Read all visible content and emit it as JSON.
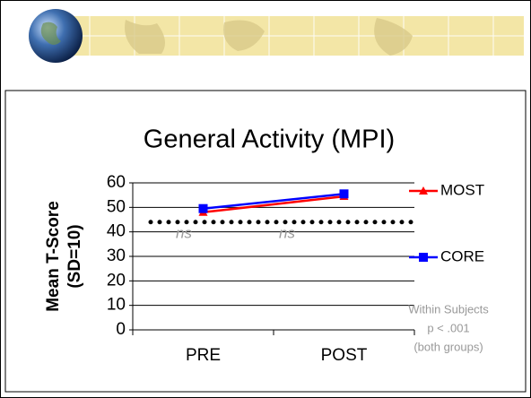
{
  "chart_data": {
    "type": "line",
    "title": "General Activity (MPI)",
    "y_label_lines": [
      "Mean T-Score",
      "(SD=10)"
    ],
    "categories": [
      "PRE",
      "POST"
    ],
    "series": [
      {
        "name": "MOST",
        "color": "#ff0000",
        "marker": "triangle",
        "values": [
          48,
          54.5
        ]
      },
      {
        "name": "CORE",
        "color": "#0000ff",
        "marker": "square",
        "values": [
          49.5,
          55.5
        ]
      }
    ],
    "ylim": [
      0,
      60
    ],
    "yticks": [
      0,
      10,
      20,
      30,
      40,
      50,
      60
    ],
    "grid": true,
    "reference_line": {
      "value": 44,
      "color": "#000000"
    },
    "ns_labels": [
      "ns",
      "ns"
    ],
    "annotation_lines": [
      "Within Subjects",
      "p < .001",
      "(both groups)"
    ]
  }
}
